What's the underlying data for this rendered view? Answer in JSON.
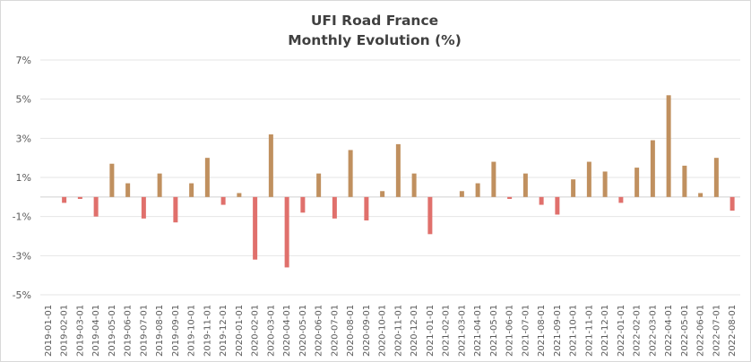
{
  "chart_data": {
    "type": "bar",
    "title_line1": "UFI Road France",
    "title_line2": "Monthly Evolution (%)",
    "xlabel": "",
    "ylabel": "",
    "ylim": [
      -5,
      7
    ],
    "yticks": [
      "7%",
      "5%",
      "3%",
      "1%",
      "-1%",
      "-3%",
      "-5%"
    ],
    "ytick_values": [
      7,
      5,
      3,
      1,
      -1,
      -3,
      -5
    ],
    "grid": "horizontal",
    "legend": "none",
    "positive_color": "#c0905f",
    "negative_color": "#e0706c",
    "categories": [
      "2019-01-01",
      "2019-02-01",
      "2019-03-01",
      "2019-04-01",
      "2019-05-01",
      "2019-06-01",
      "2019-07-01",
      "2019-08-01",
      "2019-09-01",
      "2019-10-01",
      "2019-11-01",
      "2019-12-01",
      "2020-01-01",
      "2020-02-01",
      "2020-03-01",
      "2020-04-01",
      "2020-05-01",
      "2020-06-01",
      "2020-07-01",
      "2020-08-01",
      "2020-09-01",
      "2020-10-01",
      "2020-11-01",
      "2020-12-01",
      "2021-01-01",
      "2021-02-01",
      "2021-03-01",
      "2021-04-01",
      "2021-05-01",
      "2021-06-01",
      "2021-07-01",
      "2021-08-01",
      "2021-09-01",
      "2021-10-01",
      "2021-11-01",
      "2021-12-01",
      "2022-01-01",
      "2022-02-01",
      "2022-03-01",
      "2022-04-01",
      "2022-05-01",
      "2022-06-01",
      "2022-07-01",
      "2022-08-01"
    ],
    "values": [
      0.0,
      -0.3,
      -0.1,
      -1.0,
      1.7,
      0.7,
      -1.1,
      1.2,
      -1.3,
      0.7,
      2.0,
      -0.4,
      0.2,
      -3.2,
      3.2,
      -3.6,
      -0.8,
      1.2,
      -1.1,
      2.4,
      -1.2,
      0.3,
      2.7,
      1.2,
      -1.9,
      0.0,
      0.3,
      0.7,
      1.8,
      -0.1,
      1.2,
      -0.4,
      -0.9,
      0.9,
      1.8,
      1.3,
      -0.3,
      1.5,
      2.9,
      5.2,
      1.6,
      0.2,
      2.0,
      -0.7
    ]
  }
}
